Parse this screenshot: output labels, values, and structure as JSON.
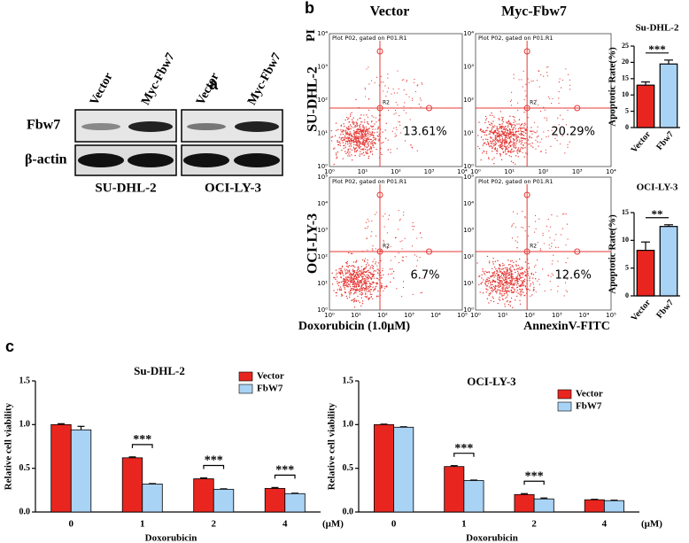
{
  "panel_a": {
    "label": "a",
    "lanes": [
      "Vector",
      "Myc-Fbw7",
      "Vector",
      "Myc-Fbw7"
    ],
    "rows": [
      "Fbw7",
      "β-actin"
    ],
    "cell_lines": [
      "SU-DHL-2",
      "OCI-LY-3"
    ]
  },
  "panel_b": {
    "label": "b",
    "columns": [
      "Vector",
      "Myc-Fbw7"
    ],
    "rows": [
      "SU-DHL-2",
      "OCI-LY-3"
    ],
    "y_axis": "PI",
    "x_axis_left": "Doxorubicin (1.0μM)",
    "x_axis_right": "AnnexinV-FITC",
    "plot_header": "Plot P02, gated on P01.R1",
    "gate": "R2",
    "percentages": [
      [
        "13.61%",
        "20.29%"
      ],
      [
        "6.7%",
        "12.6%"
      ]
    ],
    "x_tick_labels": [
      [
        "10⁰",
        "10¹",
        "10²",
        "10³",
        "10⁴"
      ],
      [
        "10⁰",
        "10¹",
        "10²",
        "10³",
        "10⁴",
        "10⁵"
      ]
    ],
    "y_tick_labels": [
      [
        "10⁰",
        "10¹",
        "10²",
        "10³",
        "10⁴"
      ],
      [
        "10⁰",
        "10¹",
        "10²",
        "10³",
        "10⁴",
        "10⁵"
      ]
    ]
  },
  "panel_c_label": "c",
  "chart_data": [
    {
      "type": "bar",
      "title": "Su-DHL-2",
      "ylabel": "Apoptotic Rate(%)",
      "categories": [
        "Vector",
        "Fbw7"
      ],
      "values": [
        13,
        19.5
      ],
      "errors": [
        1,
        1.2
      ],
      "colors": [
        "#e8261f",
        "#a9d3f5"
      ],
      "ylim": [
        0,
        25
      ],
      "yticks": [
        0,
        5,
        10,
        15,
        20,
        25
      ],
      "significance": "***"
    },
    {
      "type": "bar",
      "title": "OCI-LY-3",
      "ylabel": "Apoptotic Rate(%)",
      "categories": [
        "Vector",
        "Fbw7"
      ],
      "values": [
        8.2,
        12.5
      ],
      "errors": [
        1.5,
        0.3
      ],
      "colors": [
        "#e8261f",
        "#a9d3f5"
      ],
      "ylim": [
        0,
        15
      ],
      "yticks": [
        0,
        5,
        10,
        15
      ],
      "significance": "**"
    },
    {
      "type": "grouped_bar",
      "title": "Su-DHL-2",
      "xlabel": "Doxorubicin",
      "x_unit": "(μM)",
      "ylabel": "Relative cell viability",
      "categories": [
        "0",
        "1",
        "2",
        "4"
      ],
      "series": [
        {
          "name": "Vector",
          "color": "#e8261f",
          "values": [
            1.0,
            0.62,
            0.38,
            0.27
          ],
          "errors": [
            0.01,
            0.01,
            0.01,
            0.01
          ]
        },
        {
          "name": "FbW7",
          "color": "#a9d3f5",
          "values": [
            0.94,
            0.32,
            0.26,
            0.21
          ],
          "errors": [
            0.04,
            0.005,
            0.005,
            0.005
          ]
        }
      ],
      "ylim": [
        0,
        1.5
      ],
      "yticks": [
        {
          "value": 0,
          "label": "0.0"
        },
        0.5,
        {
          "value": 1,
          "label": "1.0"
        },
        1.5
      ],
      "significance": [
        null,
        "***",
        "***",
        "***"
      ],
      "legend": "upper right"
    },
    {
      "type": "grouped_bar",
      "title": "OCI-LY-3",
      "xlabel": "Doxorubicin",
      "x_unit": "(μM)",
      "ylabel": "Relative cell viability",
      "categories": [
        "0",
        "1",
        "2",
        "4"
      ],
      "series": [
        {
          "name": "Vector",
          "color": "#e8261f",
          "values": [
            1.0,
            0.52,
            0.2,
            0.14
          ],
          "errors": [
            0.005,
            0.01,
            0.01,
            0.005
          ]
        },
        {
          "name": "FbW7",
          "color": "#a9d3f5",
          "values": [
            0.97,
            0.36,
            0.15,
            0.13
          ],
          "errors": [
            0.005,
            0.005,
            0.01,
            0.005
          ]
        }
      ],
      "ylim": [
        0,
        1.5
      ],
      "yticks": [
        {
          "value": 0,
          "label": "0.0"
        },
        0.5,
        {
          "value": 1,
          "label": "1.0"
        },
        1.5
      ],
      "significance": [
        null,
        "***",
        "***",
        null
      ],
      "legend": "upper right"
    }
  ]
}
